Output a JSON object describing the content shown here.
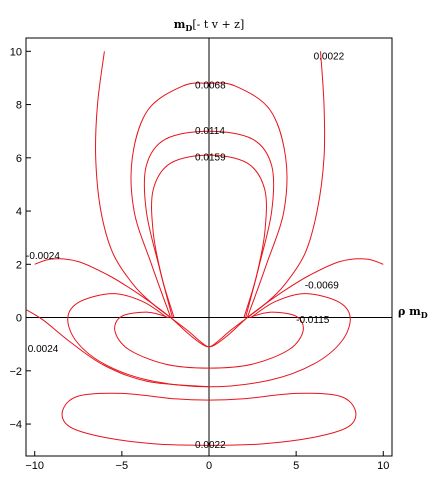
{
  "chart_data": {
    "type": "contour",
    "title": "m_D[-t v + z]",
    "title_parts": {
      "main": "m",
      "sub": "D",
      "rest": "[- t v + z]"
    },
    "xlabel": "ρ m_D",
    "xlabel_parts": {
      "main": "ρ m",
      "sub": "D"
    },
    "ylabel": "",
    "xlim": [
      -10.5,
      10.5
    ],
    "ylim": [
      -5.2,
      10.5
    ],
    "x_ticks": [
      -10,
      -5,
      0,
      5,
      10
    ],
    "x_tick_labels": [
      "−10",
      "−5",
      "0",
      "5",
      "10"
    ],
    "y_ticks": [
      -4,
      -2,
      0,
      2,
      4,
      6,
      8,
      10
    ],
    "y_tick_labels": [
      "−4",
      "−2",
      "0",
      "2",
      "4",
      "6",
      "8",
      "10"
    ],
    "grid": false,
    "line_color": "#e8141c",
    "levels": [
      {
        "value": "0.0022",
        "upper_curve": [
          [
            -6,
            10
          ],
          [
            -6.4,
            8
          ],
          [
            -6.5,
            6
          ],
          [
            -6.2,
            4
          ],
          [
            -5.5,
            2.4
          ],
          [
            -4.3,
            1.2
          ],
          [
            -3.2,
            0.5
          ],
          [
            -2.2,
            0
          ],
          [
            -1.2,
            -0.5
          ],
          [
            -0.5,
            -0.9
          ],
          [
            0,
            -1.1
          ],
          [
            0.5,
            -0.9
          ],
          [
            1.2,
            -0.5
          ],
          [
            2.2,
            0
          ],
          [
            3.2,
            0.5
          ],
          [
            4.3,
            1.2
          ],
          [
            5.5,
            2.4
          ],
          [
            6.2,
            4
          ],
          [
            6.6,
            6
          ],
          [
            6.6,
            8
          ],
          [
            6.4,
            10
          ]
        ],
        "lower_loop": [
          [
            0,
            -4.8
          ],
          [
            -3,
            -4.75
          ],
          [
            -6,
            -4.5
          ],
          [
            -8,
            -4.1
          ],
          [
            -8.4,
            -3.5
          ],
          [
            -7.5,
            -2.95
          ],
          [
            -5,
            -2.85
          ],
          [
            -2,
            -3.05
          ],
          [
            0,
            -3.1
          ],
          [
            2,
            -3.05
          ],
          [
            5,
            -2.85
          ],
          [
            7.5,
            -2.95
          ],
          [
            8.4,
            -3.5
          ],
          [
            8,
            -4.1
          ],
          [
            6,
            -4.5
          ],
          [
            3,
            -4.75
          ],
          [
            0,
            -4.8
          ]
        ]
      },
      {
        "value": "0.0068",
        "upper_curve": [
          [
            -2.2,
            0
          ],
          [
            -3.3,
            2
          ],
          [
            -4.3,
            4
          ],
          [
            -4.4,
            6
          ],
          [
            -3.5,
            7.8
          ],
          [
            -1.5,
            8.7
          ],
          [
            0,
            8.8
          ],
          [
            1.5,
            8.7
          ],
          [
            3.5,
            7.8
          ],
          [
            4.4,
            6
          ],
          [
            4.3,
            4
          ],
          [
            3.3,
            2
          ],
          [
            2.2,
            0
          ]
        ]
      },
      {
        "value": "0.0114",
        "upper_curve": [
          [
            -2.1,
            0
          ],
          [
            -2.9,
            2
          ],
          [
            -3.6,
            4
          ],
          [
            -3.6,
            5.7
          ],
          [
            -2.5,
            6.7
          ],
          [
            0,
            7
          ],
          [
            2.5,
            6.7
          ],
          [
            3.6,
            5.7
          ],
          [
            3.6,
            4
          ],
          [
            2.9,
            2
          ],
          [
            2.1,
            0
          ]
        ]
      },
      {
        "value": "0.0159",
        "upper_curve": [
          [
            -2,
            0
          ],
          [
            -2.7,
            1.5
          ],
          [
            -3.2,
            3.2
          ],
          [
            -3.2,
            4.8
          ],
          [
            -2.2,
            5.8
          ],
          [
            0,
            6.1
          ],
          [
            2.2,
            5.8
          ],
          [
            3.2,
            4.8
          ],
          [
            3.2,
            3.2
          ],
          [
            2.7,
            1.5
          ],
          [
            2,
            0
          ]
        ]
      },
      {
        "value": "-0.0024",
        "curve": [
          [
            -10,
            2
          ],
          [
            -9,
            2.2
          ],
          [
            -7.5,
            2.1
          ],
          [
            -5.8,
            1.6
          ],
          [
            -4.3,
            1
          ],
          [
            -3.2,
            0.5
          ],
          [
            -2.2,
            0
          ],
          [
            -1.2,
            -0.6
          ],
          [
            -0.4,
            -1
          ],
          [
            0,
            -1.1
          ],
          [
            0.4,
            -1
          ],
          [
            1.2,
            -0.6
          ],
          [
            2.2,
            0
          ],
          [
            3.2,
            0.5
          ],
          [
            4.3,
            1
          ],
          [
            5.8,
            1.6
          ],
          [
            7.5,
            2.1
          ],
          [
            9,
            2.2
          ],
          [
            10,
            2
          ]
        ]
      },
      {
        "value": "-0.0069",
        "curve": [
          [
            -2.4,
            0
          ],
          [
            -3.8,
            0.6
          ],
          [
            -5.5,
            0.9
          ],
          [
            -7.4,
            0.6
          ],
          [
            -8.1,
            0
          ],
          [
            -7.6,
            -0.9
          ],
          [
            -6,
            -1.75
          ],
          [
            -3.5,
            -2.35
          ],
          [
            0,
            -2.6
          ],
          [
            3.5,
            -2.35
          ],
          [
            6,
            -1.75
          ],
          [
            7.6,
            -0.9
          ],
          [
            8.1,
            0
          ],
          [
            7.4,
            0.6
          ],
          [
            5.5,
            0.9
          ],
          [
            3.8,
            0.6
          ],
          [
            2.4,
            0
          ]
        ]
      },
      {
        "value": "-0.0115",
        "curve": [
          [
            -2.3,
            0
          ],
          [
            -3.5,
            0.2
          ],
          [
            -5,
            0.05
          ],
          [
            -5.4,
            -0.5
          ],
          [
            -4.6,
            -1.2
          ],
          [
            -2.5,
            -1.75
          ],
          [
            0,
            -1.9
          ],
          [
            2.5,
            -1.75
          ],
          [
            4.6,
            -1.2
          ],
          [
            5.4,
            -0.5
          ],
          [
            5,
            0.05
          ],
          [
            3.5,
            0.2
          ],
          [
            2.3,
            0
          ]
        ]
      },
      {
        "value": "0.0024",
        "curve": [
          [
            -10.5,
            0.3
          ],
          [
            -9.5,
            -0.1
          ],
          [
            -8,
            -0.9
          ],
          [
            -6,
            -1.8
          ],
          [
            -3.5,
            -2.4
          ],
          [
            0,
            -2.6
          ]
        ]
      }
    ],
    "contour_labels": [
      {
        "text": "0.0022",
        "x": 6.0,
        "y": 9.7
      },
      {
        "text": "0.0068",
        "x": -0.8,
        "y": 8.6
      },
      {
        "text": "0.0114",
        "x": -0.8,
        "y": 6.9
      },
      {
        "text": "0.0159",
        "x": -0.8,
        "y": 5.9
      },
      {
        "text": "-0.0024",
        "x": -10.5,
        "y": 2.2
      },
      {
        "text": "-0.0069",
        "x": 5.5,
        "y": 1.1
      },
      {
        "text": "-0.0115",
        "x": 5.0,
        "y": -0.2
      },
      {
        "text": "0.0024",
        "x": -10.4,
        "y": -1.3
      },
      {
        "text": "0.0022",
        "x": -0.8,
        "y": -4.9
      }
    ]
  }
}
